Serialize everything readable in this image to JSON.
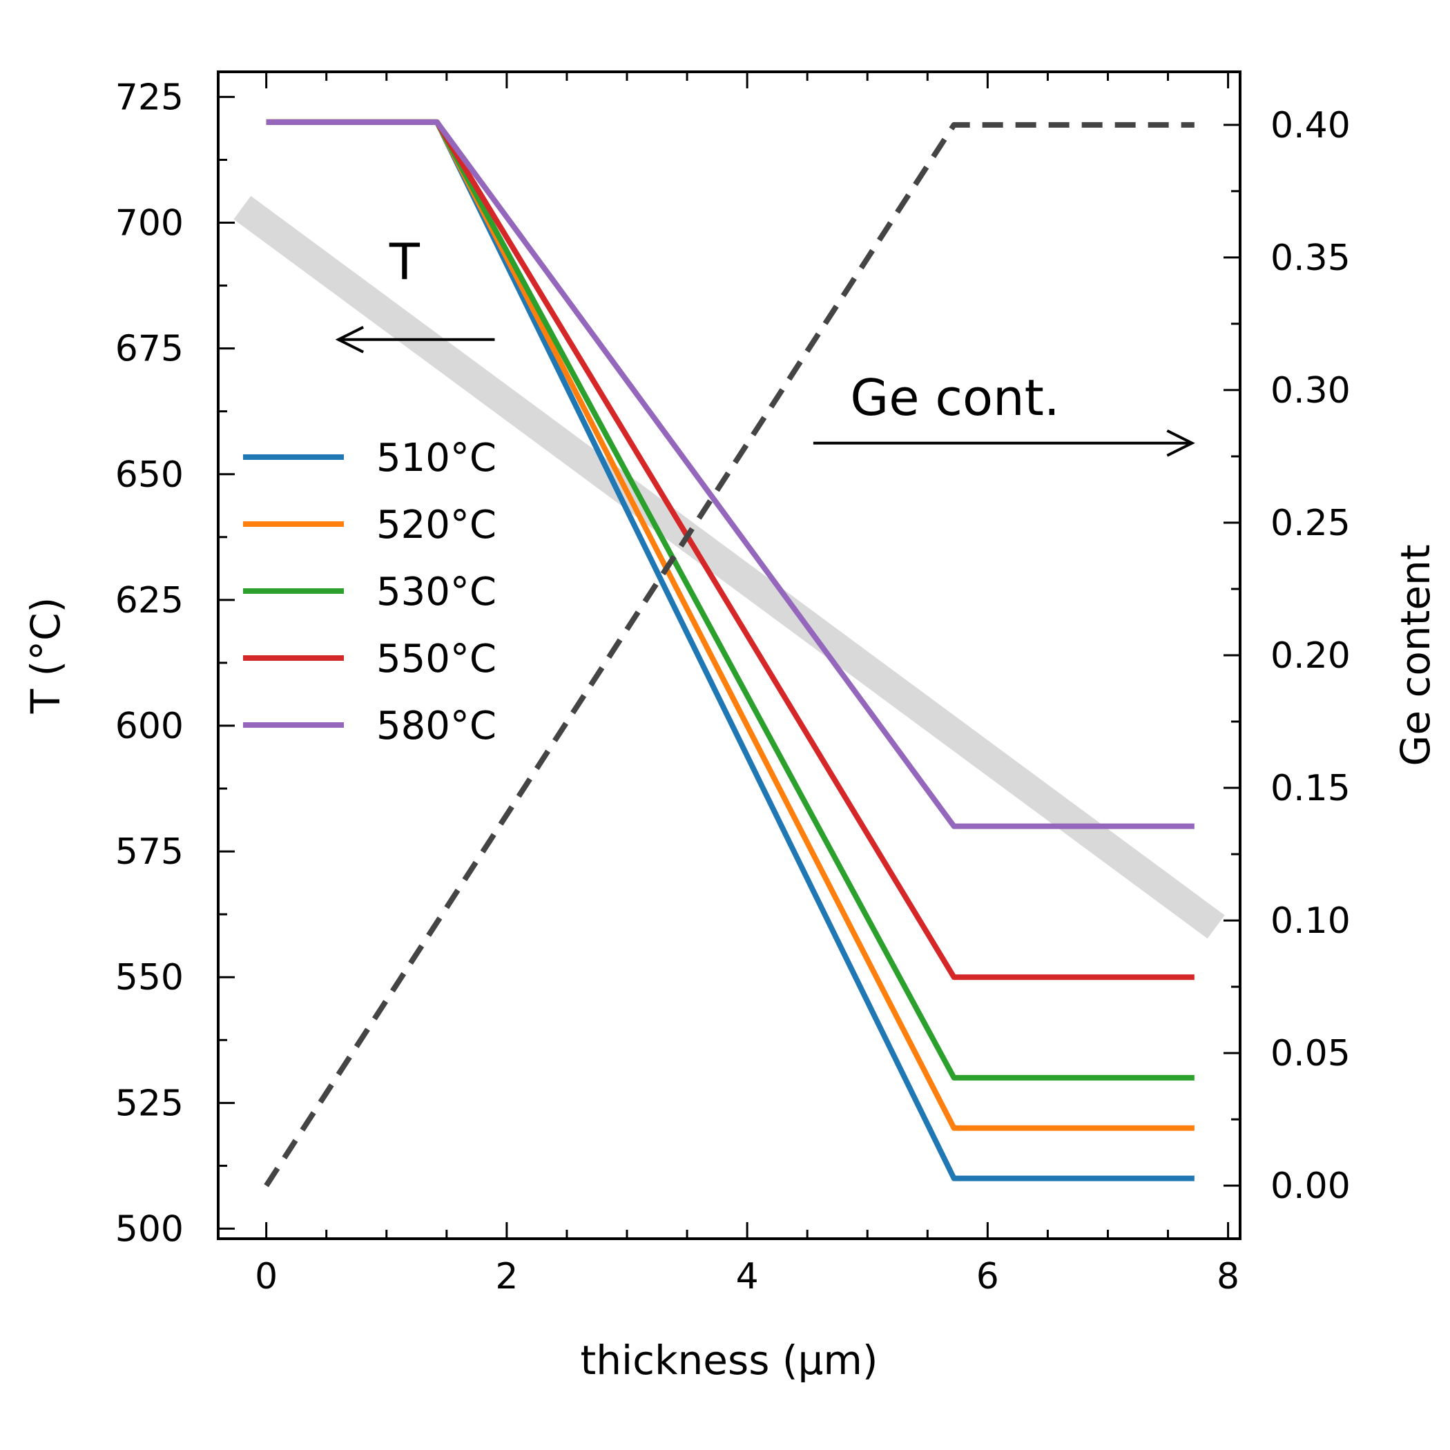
{
  "chart_data": {
    "type": "line",
    "xlabel": "thickness (μm)",
    "ylabel": "T (°C)",
    "y2label": "Ge content",
    "xlim": [
      -0.4,
      8.1
    ],
    "ylim": [
      498,
      730
    ],
    "y2lim": [
      -0.02,
      0.42
    ],
    "xticks": [
      0,
      2,
      4,
      6,
      8
    ],
    "yticks": [
      500,
      525,
      550,
      575,
      600,
      625,
      650,
      675,
      700,
      725
    ],
    "y2ticks": [
      0.0,
      0.05,
      0.1,
      0.15,
      0.2,
      0.25,
      0.3,
      0.35,
      0.4
    ],
    "y2ticklabels": [
      "0.00",
      "0.05",
      "0.10",
      "0.15",
      "0.20",
      "0.25",
      "0.30",
      "0.35",
      "0.40"
    ],
    "legend": "center-left",
    "grid": false,
    "series": [
      {
        "name": "510°C",
        "color": "#1f77b4",
        "axis": "left",
        "x": [
          0,
          1.42,
          5.72,
          7.72
        ],
        "y": [
          720,
          720,
          510,
          510
        ]
      },
      {
        "name": "520°C",
        "color": "#ff7f0e",
        "axis": "left",
        "x": [
          0,
          1.42,
          5.72,
          7.72
        ],
        "y": [
          720,
          720,
          520,
          520
        ]
      },
      {
        "name": "530°C",
        "color": "#2ca02c",
        "axis": "left",
        "x": [
          0,
          1.42,
          5.72,
          7.72
        ],
        "y": [
          720,
          720,
          530,
          530
        ]
      },
      {
        "name": "550°C",
        "color": "#d62728",
        "axis": "left",
        "x": [
          0,
          1.42,
          5.72,
          7.72
        ],
        "y": [
          720,
          720,
          550,
          550
        ]
      },
      {
        "name": "580°C",
        "color": "#9467bd",
        "axis": "left",
        "x": [
          0,
          1.42,
          5.72,
          7.72
        ],
        "y": [
          720,
          720,
          580,
          580
        ]
      }
    ],
    "ge_content": {
      "color": "#444444",
      "axis": "right",
      "style": "dashed",
      "x": [
        0,
        5.72,
        7.72
      ],
      "y": [
        0.0,
        0.4,
        0.4
      ]
    },
    "trend_band": {
      "color": "#d9d9d9",
      "axis": "left",
      "x": [
        -0.2,
        7.9
      ],
      "y": [
        703,
        560
      ]
    },
    "annotations": [
      {
        "text": "T",
        "x": 1.15,
        "y": 688,
        "arrow_from": [
          1.9,
          685
        ],
        "arrow_to": [
          0.6,
          685
        ]
      },
      {
        "text": "Ge cont.",
        "x": 4.8,
        "y": 0.3,
        "arrow_from": [
          4.55,
          0.28
        ],
        "arrow_to": [
          7.7,
          0.28
        ]
      }
    ]
  }
}
